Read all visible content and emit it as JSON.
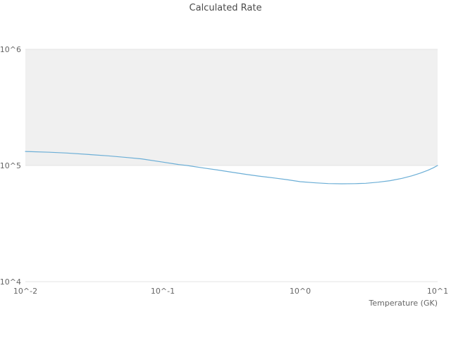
{
  "chart_data": {
    "type": "line",
    "title": "Calculated Rate",
    "xlabel": "Temperature (GK)",
    "ylabel": "",
    "xscale": "log",
    "yscale": "log",
    "xlim": [
      0.01,
      10
    ],
    "ylim": [
      10000,
      1000000
    ],
    "grid": true,
    "legend": false,
    "x_ticks": [
      {
        "v": 0.01,
        "label": "10^-2"
      },
      {
        "v": 0.1,
        "label": "10^-1"
      },
      {
        "v": 1,
        "label": "10^0"
      },
      {
        "v": 10,
        "label": "10^1"
      }
    ],
    "y_ticks": [
      {
        "v": 10000,
        "label": "10^4"
      },
      {
        "v": 100000,
        "label": "10^5"
      },
      {
        "v": 1000000,
        "label": "10^6"
      }
    ],
    "band": {
      "from": 100000,
      "to": 1000000,
      "color": "#f0f0f0"
    },
    "colors": {
      "line": "#6baed6",
      "gridline": "#e3e3e3"
    },
    "series": [
      {
        "name": "Calculated Rate",
        "color": "#6baed6",
        "points": [
          [
            0.01,
            132000
          ],
          [
            0.015,
            130000
          ],
          [
            0.02,
            128000
          ],
          [
            0.03,
            124000
          ],
          [
            0.04,
            121000
          ],
          [
            0.055,
            117000
          ],
          [
            0.07,
            114000
          ],
          [
            0.1,
            107000
          ],
          [
            0.13,
            102000
          ],
          [
            0.15,
            100000
          ],
          [
            0.2,
            95000
          ],
          [
            0.25,
            91500
          ],
          [
            0.32,
            87500
          ],
          [
            0.4,
            84000
          ],
          [
            0.5,
            81000
          ],
          [
            0.65,
            78000
          ],
          [
            0.8,
            75500
          ],
          [
            1.0,
            72500
          ],
          [
            1.3,
            70800
          ],
          [
            1.6,
            69900
          ],
          [
            2.0,
            69600
          ],
          [
            2.5,
            69800
          ],
          [
            3.0,
            70300
          ],
          [
            3.7,
            71800
          ],
          [
            4.5,
            74000
          ],
          [
            5.5,
            77500
          ],
          [
            6.5,
            81500
          ],
          [
            7.5,
            86000
          ],
          [
            8.5,
            91000
          ],
          [
            9.3,
            95500
          ],
          [
            10.0,
            100000
          ]
        ]
      }
    ]
  }
}
